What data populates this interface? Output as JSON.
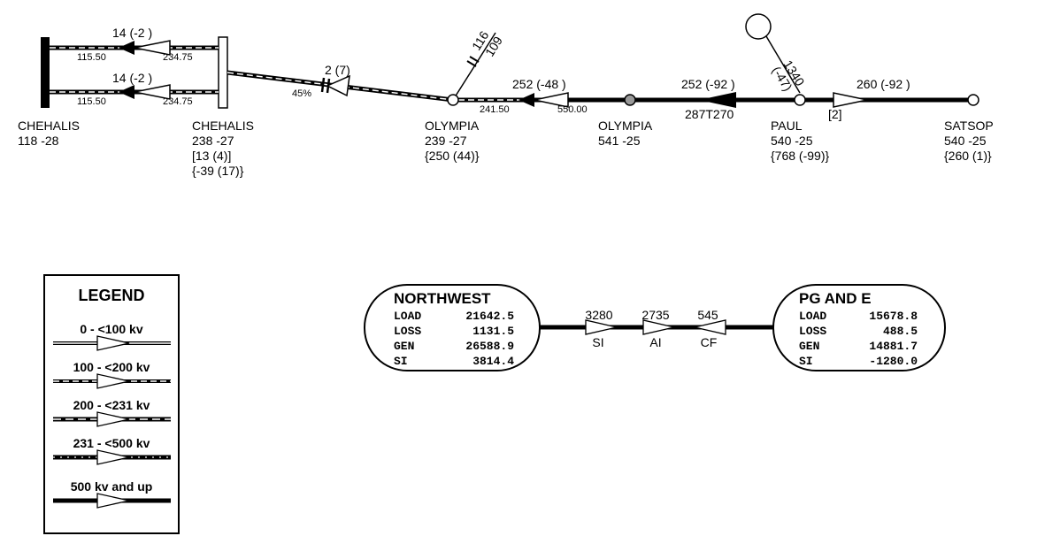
{
  "buses": [
    {
      "name": "CHEHALIS",
      "values": "118 -28",
      "extra": []
    },
    {
      "name": "CHEHALIS",
      "values": "238 -27",
      "extra": [
        "[13 (4)]",
        "{-39 (17)}"
      ]
    },
    {
      "name": "OLYMPIA",
      "values": "239 -27",
      "extra": [
        "{250 (44)}"
      ]
    },
    {
      "name": "OLYMPIA",
      "values": "541 -25",
      "extra": []
    },
    {
      "name": "PAUL",
      "values": "540 -25",
      "extra": [
        "{768 (-99)}"
      ]
    },
    {
      "name": "SATSOP",
      "values": "540 -25",
      "extra": [
        "{260 (1)}"
      ]
    }
  ],
  "transformers": [
    {
      "flow": "14 (-2 )",
      "low_tap": "115.50",
      "high_tap": "234.75"
    },
    {
      "flow": "14 (-2 )",
      "low_tap": "115.50",
      "high_tap": "234.75"
    },
    {
      "flow": "252 (-48 )",
      "low_tap": "241.50",
      "high_tap": "550.00"
    }
  ],
  "lines": [
    {
      "flow": "2 (7)",
      "compensation": "45%"
    },
    {
      "flow": "252 (-92 )",
      "id": "287T270"
    },
    {
      "flow": "260 (-92 )",
      "id": "[2]"
    }
  ],
  "shunt": {
    "value_a": "116",
    "value_b": "109"
  },
  "generator": {
    "value": "1340",
    "reactive": "(-47)"
  },
  "legend": {
    "title": "LEGEND",
    "items": [
      "0 - <100 kv",
      "100 - <200 kv",
      "200 - <231 kv",
      "231 - <500 kv",
      "500 kv and up"
    ]
  },
  "areas": [
    {
      "name": "NORTHWEST",
      "rows": [
        [
          "LOAD",
          "21642.5"
        ],
        [
          "LOSS",
          "1131.5"
        ],
        [
          "GEN",
          "26588.9"
        ],
        [
          "SI",
          "3814.4"
        ]
      ]
    },
    {
      "name": "PG AND E",
      "rows": [
        [
          "LOAD",
          "15678.8"
        ],
        [
          "LOSS",
          "488.5"
        ],
        [
          "GEN",
          "14881.7"
        ],
        [
          "SI",
          "-1280.0"
        ]
      ]
    }
  ],
  "interties": [
    {
      "flow": "3280",
      "label": "SI"
    },
    {
      "flow": "2735",
      "label": "AI"
    },
    {
      "flow": "545",
      "label": "CF"
    }
  ]
}
